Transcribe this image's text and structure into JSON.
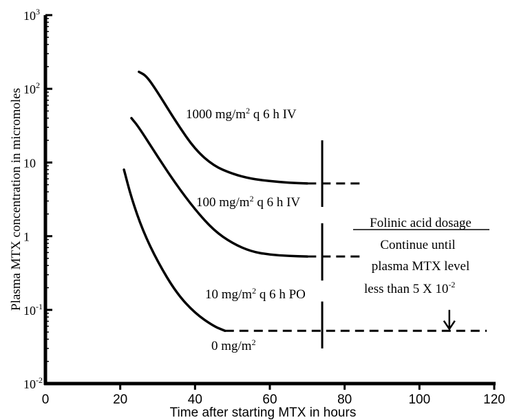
{
  "chart_data": {
    "type": "line",
    "title": "",
    "xlabel": "Time after starting  MTX in hours",
    "ylabel": "Plasma MTX concentration in micromoles",
    "x_ticks": [
      0,
      20,
      40,
      60,
      80,
      100,
      120
    ],
    "x_tick_labels": [
      "0",
      "20",
      "40",
      "60",
      "80",
      "100",
      "120"
    ],
    "xlim": [
      0,
      120
    ],
    "y_scale": "log",
    "ylim": [
      0.01,
      1000
    ],
    "y_ticks": [
      {
        "value": 1000,
        "base": "10",
        "sup": "3"
      },
      {
        "value": 100,
        "base": "10",
        "sup": "2"
      },
      {
        "value": 10,
        "base": "10",
        "sup": ""
      },
      {
        "value": 1,
        "base": "1",
        "sup": ""
      },
      {
        "value": 0.1,
        "base": "10",
        "sup": "-1"
      },
      {
        "value": 0.01,
        "base": "10",
        "sup": "-2"
      }
    ],
    "grid": false,
    "series": [
      {
        "label_parts": [
          "1000 mg/m",
          "2",
          " q 6 h  IV"
        ],
        "solid": {
          "x": [
            25,
            27,
            30,
            35,
            40,
            45,
            50,
            55,
            60,
            65,
            70
          ],
          "y": [
            170,
            150,
            90,
            35,
            15,
            9,
            7,
            6,
            5.6,
            5.3,
            5.2
          ]
        },
        "dashed": {
          "x": [
            70,
            84
          ],
          "y": [
            5.2,
            5.2
          ]
        }
      },
      {
        "label_parts": [
          "100 mg/m",
          "2",
          " q 6 h  IV"
        ],
        "solid": {
          "x": [
            23,
            25,
            30,
            35,
            40,
            45,
            50,
            55,
            60,
            65,
            70
          ],
          "y": [
            40,
            30,
            12,
            5,
            2.3,
            1.2,
            0.8,
            0.62,
            0.56,
            0.54,
            0.53
          ]
        },
        "dashed": {
          "x": [
            70,
            84
          ],
          "y": [
            0.53,
            0.53
          ]
        }
      },
      {
        "label_parts": [
          "10 mg/m",
          "2",
          " q 6 h PO"
        ],
        "solid": {
          "x": [
            21,
            23,
            26,
            30,
            35,
            40,
            45,
            48
          ],
          "y": [
            8,
            3.3,
            1.2,
            0.45,
            0.17,
            0.09,
            0.06,
            0.052
          ]
        },
        "dashed": {
          "x": [
            48,
            118
          ],
          "y": [
            0.052,
            0.052
          ]
        }
      },
      {
        "label_parts": [
          "0 mg/m",
          "2",
          ""
        ]
      }
    ],
    "marker_line": {
      "x": 74,
      "y_range": [
        0.03,
        20
      ],
      "gaps": [
        [
          1.5,
          2.5
        ],
        [
          0.13,
          0.25
        ]
      ]
    },
    "annotations": {
      "folinic_title": "Folinic acid dosage",
      "line1": "Continue until",
      "line2": "plasma MTX level",
      "line3_base": "less than 5 X 10",
      "line3_sup": "-2",
      "arrow": {
        "x": 108,
        "y_from": 0.1,
        "y_to": 0.055
      }
    }
  }
}
